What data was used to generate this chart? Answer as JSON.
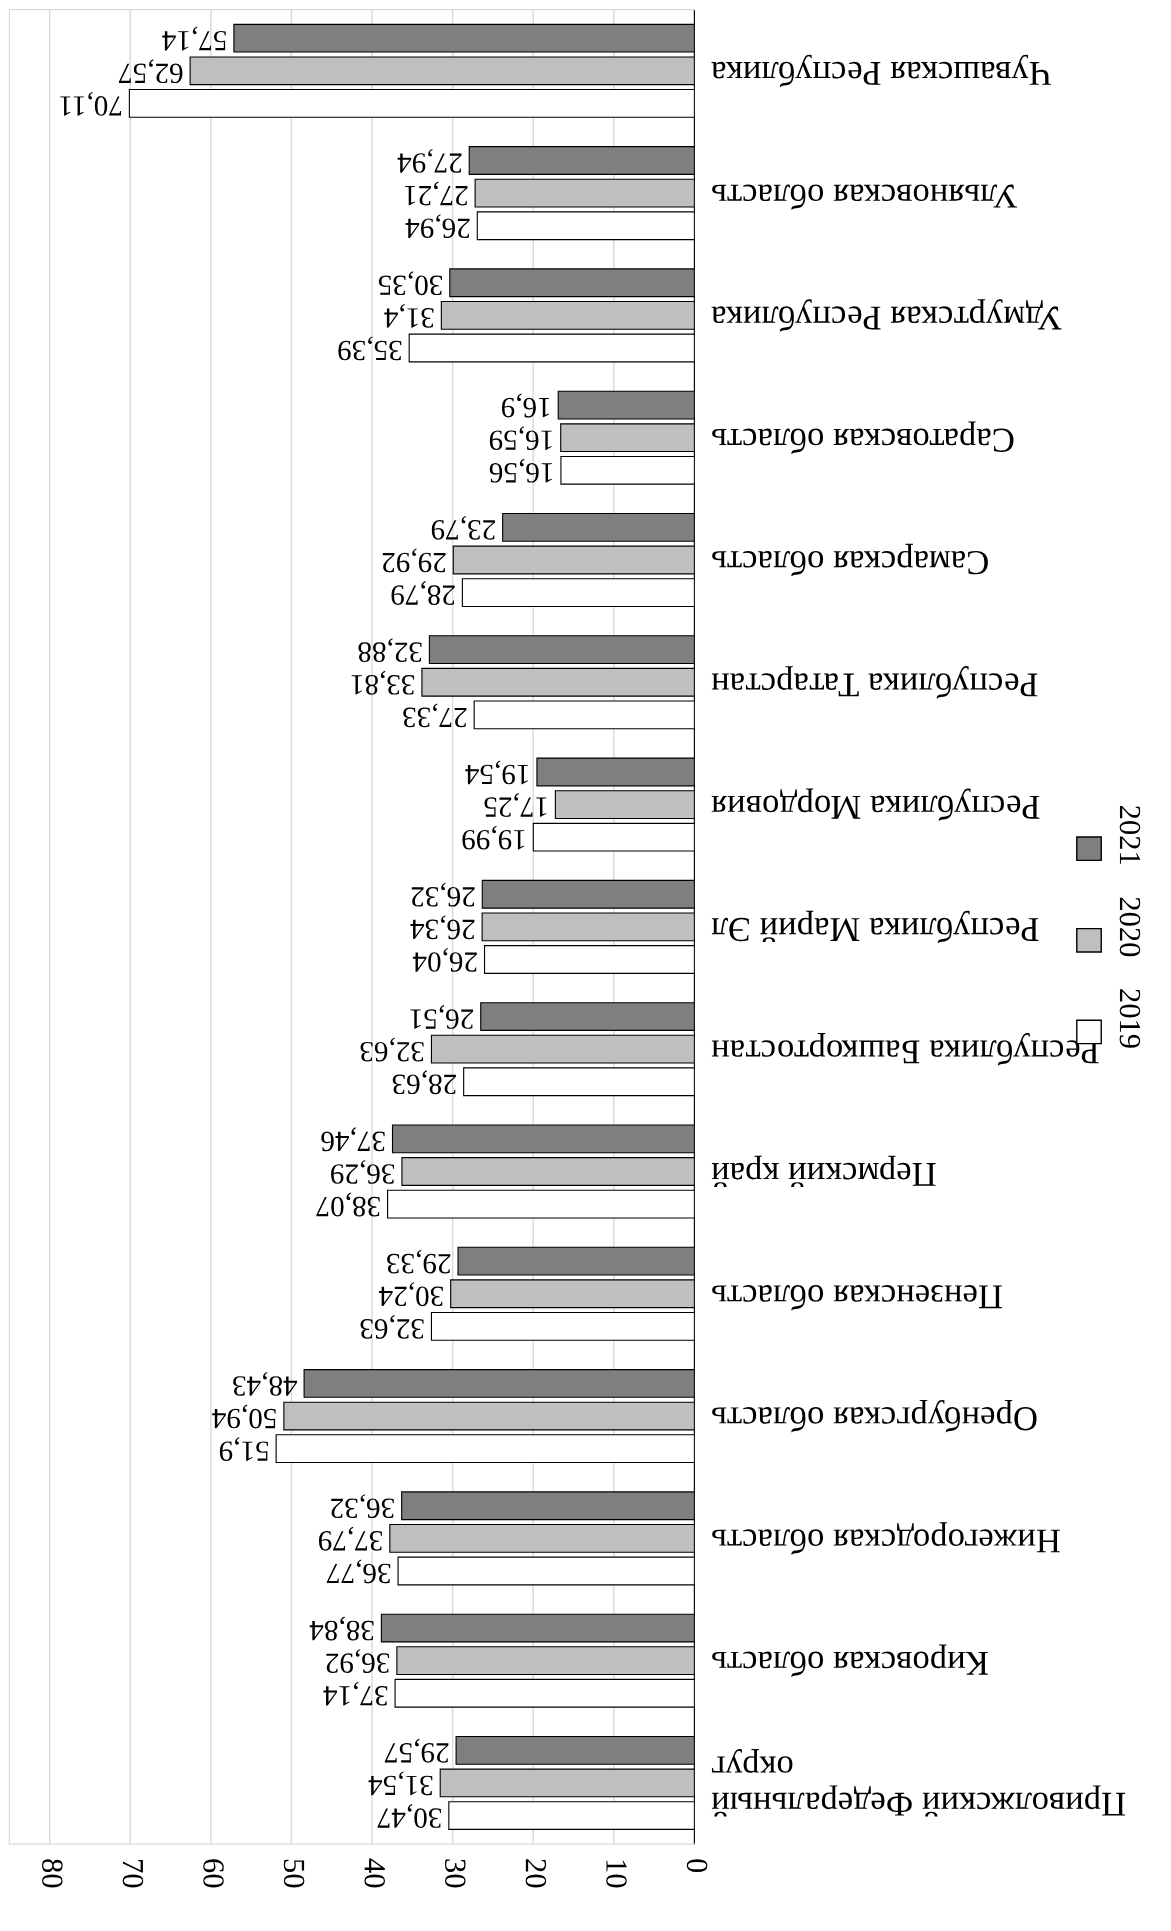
{
  "chart_data": {
    "type": "bar",
    "orientation": "horizontal",
    "categories": [
      "Чувашская Республика",
      "Ульяновская область",
      "Удмуртская Республика",
      "Саратовская область",
      "Самарская область",
      "Республика Татарстан",
      "Республика Мордовия",
      "Республика Марий Эл",
      "Республика Башкортостан",
      "Пермский край",
      "Пензенская область",
      "Оренбургская область",
      "Нижегородская область",
      "Кировская область",
      "Приволжский Федеральный\nокруг"
    ],
    "series": [
      {
        "name": "2019",
        "color": "#ffffff",
        "values": [
          70.11,
          26.94,
          35.39,
          16.56,
          28.79,
          27.33,
          19.99,
          26.04,
          28.63,
          38.07,
          32.63,
          51.9,
          36.77,
          37.14,
          30.47
        ],
        "value_labels": [
          "70,11",
          "26,94",
          "35,39",
          "16,56",
          "28,79",
          "27,33",
          "19,99",
          "26,04",
          "28,63",
          "38,07",
          "32,63",
          "51,9",
          "36,77",
          "37,14",
          "30,47"
        ]
      },
      {
        "name": "2020",
        "color": "#bfbfbf",
        "values": [
          62.57,
          27.21,
          31.4,
          16.59,
          29.92,
          33.81,
          17.25,
          26.34,
          32.63,
          36.29,
          30.24,
          50.94,
          37.79,
          36.92,
          31.54
        ],
        "value_labels": [
          "62,57",
          "27,21",
          "31,4",
          "16,59",
          "29,92",
          "33,81",
          "17,25",
          "26,34",
          "32,63",
          "36,29",
          "30,24",
          "50,94",
          "37,79",
          "36,92",
          "31,54"
        ]
      },
      {
        "name": "2021",
        "color": "#7f7f7f",
        "values": [
          57.14,
          27.94,
          30.35,
          16.9,
          23.79,
          32.88,
          19.54,
          26.32,
          26.51,
          37.46,
          29.33,
          48.43,
          36.32,
          38.84,
          29.57
        ],
        "value_labels": [
          "57,14",
          "27,94",
          "30,35",
          "16,9",
          "23,79",
          "32,88",
          "19,54",
          "26,32",
          "26,51",
          "37,46",
          "29,33",
          "48,43",
          "36,32",
          "38,84",
          "29,57"
        ]
      }
    ],
    "xlim": [
      85,
      0
    ],
    "xticks": [
      0,
      10,
      20,
      30,
      40,
      50,
      60,
      70,
      80
    ],
    "grid": "x",
    "legend": "right"
  }
}
